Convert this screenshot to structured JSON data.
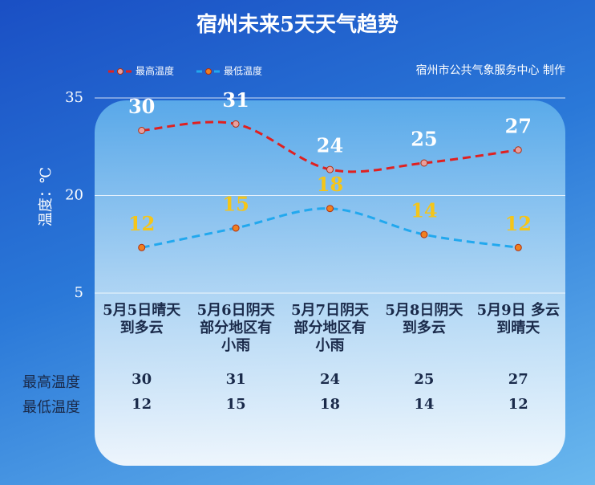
{
  "chart_data": {
    "type": "line",
    "title": "宿州未来5天天气趋势",
    "credit": "宿州市公共气象服务中心 制作",
    "y_label": "温度：℃",
    "categories": [
      "5月5日晴天\n到多云",
      "5月6日阴天\n部分地区有\n小雨",
      "5月7日阴天\n部分地区有\n小雨",
      "5月8日阴天\n到多云",
      "5月9日 多云\n到晴天"
    ],
    "series": [
      {
        "name": "最高温度",
        "color": "#e02020",
        "label_color": "#ffffff",
        "values": [
          30,
          31,
          24,
          25,
          27
        ]
      },
      {
        "name": "最低温度",
        "color": "#22a8ee",
        "label_color": "#f5c518",
        "values": [
          12,
          15,
          18,
          14,
          12
        ]
      }
    ],
    "ylim": [
      5,
      35
    ],
    "yticks": [
      5,
      20,
      35
    ],
    "grid": true
  }
}
